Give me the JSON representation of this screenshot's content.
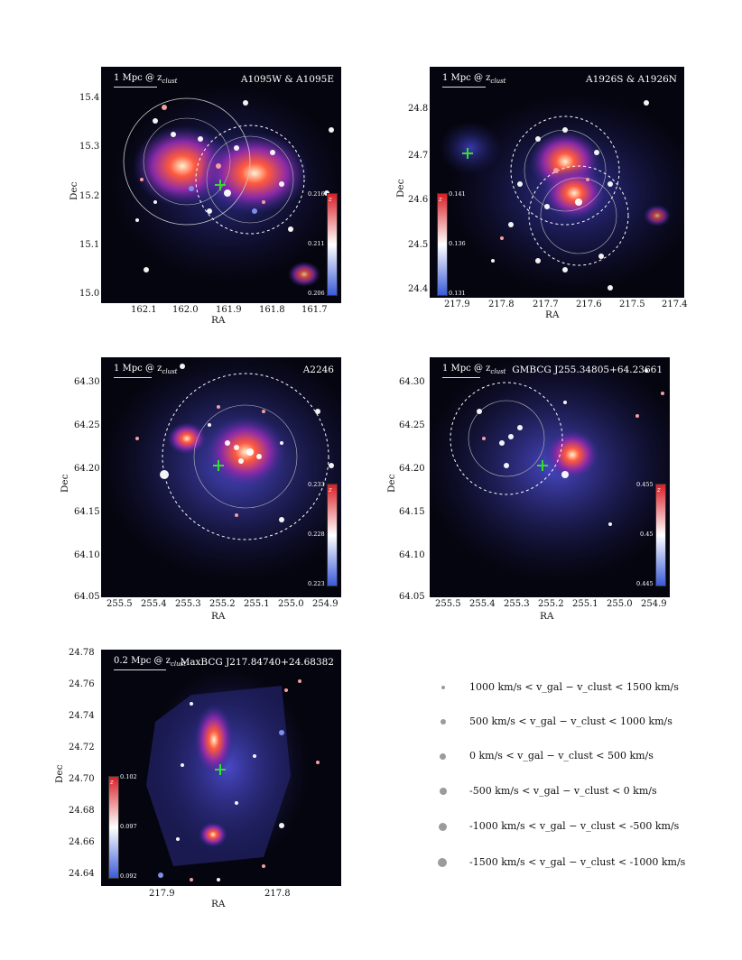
{
  "panels": [
    {
      "id": "a1095",
      "title": "A1095W & A1095E",
      "scale_label": "1 Mpc @ z",
      "scale_sub": "clust",
      "xlabel": "RA",
      "ylabel": "Dec",
      "xticks": [
        "162.1",
        "162.0",
        "161.9",
        "161.8",
        "161.7"
      ],
      "yticks": [
        "15.4",
        "15.3",
        "15.2",
        "15.1",
        "15.0"
      ],
      "colorbar": {
        "symbol": "z",
        "ticks": [
          "0.216",
          "0.211",
          "0.206"
        ]
      }
    },
    {
      "id": "a1926",
      "title": "A1926S & A1926N",
      "scale_label": "1 Mpc @ z",
      "scale_sub": "clust",
      "xlabel": "RA",
      "ylabel": "Dec",
      "xticks": [
        "217.9",
        "217.8",
        "217.7",
        "217.6",
        "217.5",
        "217.4"
      ],
      "yticks": [
        "24.8",
        "24.7",
        "24.6",
        "24.5",
        "24.4"
      ],
      "colorbar": {
        "symbol": "z",
        "ticks": [
          "0.141",
          "0.136",
          "0.131"
        ]
      }
    },
    {
      "id": "a2246",
      "title": "A2246",
      "scale_label": "1 Mpc @ z",
      "scale_sub": "clust",
      "xlabel": "RA",
      "ylabel": "Dec",
      "xticks": [
        "255.5",
        "255.4",
        "255.3",
        "255.2",
        "255.1",
        "255.0",
        "254.9"
      ],
      "yticks": [
        "64.30",
        "64.25",
        "64.20",
        "64.15",
        "64.10",
        "64.05"
      ],
      "colorbar": {
        "symbol": "z",
        "ticks": [
          "0.233",
          "0.228",
          "0.223"
        ]
      }
    },
    {
      "id": "gmbcg",
      "title": "GMBCG J255.34805+64.23661",
      "scale_label": "1 Mpc @ z",
      "scale_sub": "clust",
      "xlabel": "RA",
      "ylabel": "Dec",
      "xticks": [
        "255.5",
        "255.4",
        "255.3",
        "255.2",
        "255.1",
        "255.0",
        "254.9"
      ],
      "yticks": [
        "64.30",
        "64.25",
        "64.20",
        "64.15",
        "64.10",
        "64.05"
      ],
      "colorbar": {
        "symbol": "z",
        "ticks": [
          "0.455",
          "0.45",
          "0.445"
        ]
      }
    },
    {
      "id": "maxbcg",
      "title": "MaxBCG J217.84740+24.68382",
      "scale_label": "0.2 Mpc @ z",
      "scale_sub": "clust",
      "xlabel": "RA",
      "ylabel": "Dec",
      "xticks": [
        "217.9",
        "217.8"
      ],
      "yticks": [
        "24.78",
        "24.76",
        "24.74",
        "24.72",
        "24.70",
        "24.68",
        "24.66",
        "24.64"
      ],
      "colorbar": {
        "symbol": "z",
        "ticks": [
          "0.102",
          "0.097",
          "0.092"
        ]
      }
    }
  ],
  "legend": [
    {
      "text": "1000 km/s < v_gal − v_clust < 1500 km/s",
      "size": "smallest"
    },
    {
      "text": "500 km/s < v_gal − v_clust < 1000 km/s",
      "size": "small"
    },
    {
      "text": "0 km/s < v_gal − v_clust < 500 km/s",
      "size": "medium-small"
    },
    {
      "text": "-500 km/s < v_gal − v_clust < 0 km/s",
      "size": "medium"
    },
    {
      "text": "-1000 km/s < v_gal − v_clust < -500 km/s",
      "size": "large"
    },
    {
      "text": "-1500 km/s < v_gal − v_clust < -1000 km/s",
      "size": "largest"
    }
  ],
  "colors": {
    "background": "#05050f",
    "diffuse": "#2b2a8a",
    "hot": "#ff5a3c",
    "marker_cross": "#33dd33",
    "ring": "#ffffff"
  }
}
